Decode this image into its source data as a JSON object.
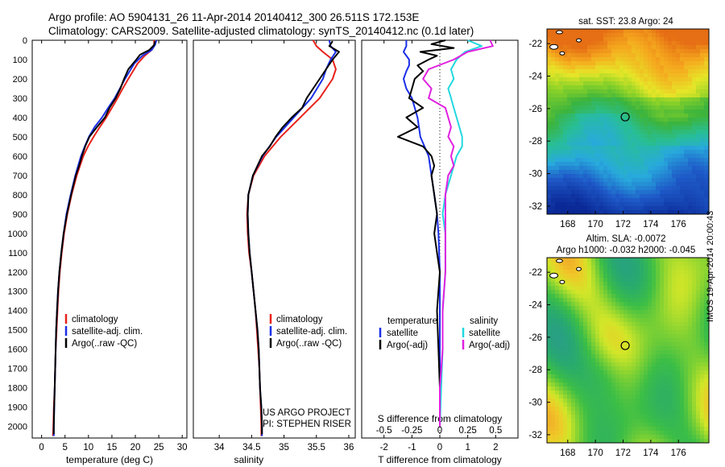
{
  "header": {
    "line1": "Argo profile: AO 5904131_26 11-Apr-2014 20140412_300 26.511S 172.153E",
    "line2": "Climatology: CARS2009. Satellite-adjusted climatology: synTS_20140412.nc (0.1d later)"
  },
  "footer": {
    "stamp": "IMOS 19-Apr-2014 20:00:43",
    "project": "US ARGO PROJECT",
    "pi": "PI: STEPHEN RISER"
  },
  "colors": {
    "climatology": "#e8221b",
    "satellite": "#1a2fe8",
    "argo": "#000000",
    "sat_salinity": "#22d8e0",
    "argo_salinity": "#e020e0"
  },
  "chart_data": [
    {
      "type": "line",
      "name": "temperature-profile",
      "xlabel": "temperature (deg C)",
      "ylabel": "",
      "xlim": [
        -2,
        31
      ],
      "ylim": [
        2060,
        0
      ],
      "xticks": [
        0,
        5,
        10,
        15,
        20,
        25,
        30
      ],
      "yticks": [
        0,
        100,
        200,
        300,
        400,
        500,
        600,
        700,
        800,
        900,
        1000,
        1100,
        1200,
        1300,
        1400,
        1500,
        1600,
        1700,
        1800,
        1900,
        2000
      ],
      "legend": [
        "climatology",
        "satellite-adj. clim.",
        "Argo(..raw -QC)"
      ],
      "series": [
        {
          "name": "climatology",
          "color": "climatology",
          "depth": [
            0,
            25,
            50,
            80,
            120,
            160,
            200,
            250,
            300,
            350,
            400,
            450,
            500,
            550,
            600,
            650,
            700,
            800,
            900,
            1000,
            1100,
            1200,
            1300,
            1400,
            1500,
            1600,
            1700,
            1800,
            1900,
            2000,
            2050
          ],
          "values": [
            24,
            24,
            23.5,
            22,
            20.5,
            19.5,
            18.5,
            17.3,
            16.2,
            15,
            13.8,
            12.4,
            11.1,
            9.9,
            8.9,
            8.2,
            7.5,
            6.4,
            5.5,
            4.8,
            4.3,
            3.9,
            3.6,
            3.4,
            3.2,
            3.0,
            2.9,
            2.8,
            2.6,
            2.5,
            2.4
          ]
        },
        {
          "name": "satellite-adj. clim.",
          "color": "satellite",
          "depth": [
            0,
            25,
            50,
            80,
            120,
            160,
            200,
            250,
            300,
            350,
            400,
            450,
            500,
            550,
            600,
            650,
            700,
            800,
            900,
            1000,
            1100,
            1200,
            1300,
            1400,
            1500,
            1600,
            1700,
            1800,
            1900,
            2000,
            2050
          ],
          "values": [
            24.5,
            24.2,
            23.5,
            21.5,
            19.8,
            18.8,
            17.8,
            16.7,
            15.6,
            14.2,
            12.9,
            11.3,
            10.1,
            9.2,
            8.4,
            7.8,
            7.2,
            6.2,
            5.3,
            4.7,
            4.2,
            3.8,
            3.5,
            3.3,
            3.1,
            3.0,
            2.9,
            2.8,
            2.7,
            2.6,
            2.6
          ]
        },
        {
          "name": "Argo(..raw -QC)",
          "color": "argo",
          "depth": [
            5,
            25,
            50,
            75,
            100,
            150,
            200,
            250,
            300,
            350,
            400,
            450,
            500,
            550,
            600,
            650,
            700,
            800,
            900,
            1000,
            1100,
            1200,
            1300,
            1400,
            1500,
            1600,
            1700,
            1800,
            1900,
            2000,
            2040
          ],
          "values": [
            24.2,
            24,
            23,
            21,
            20.2,
            18.5,
            17.6,
            16.8,
            15.8,
            14.5,
            13.5,
            11.8,
            10.2,
            9.3,
            8.6,
            8,
            7.3,
            6.3,
            5.4,
            4.7,
            4.2,
            3.8,
            3.5,
            3.3,
            3.1,
            3.0,
            2.9,
            2.8,
            2.7,
            2.6,
            2.6
          ]
        }
      ]
    },
    {
      "type": "line",
      "name": "salinity-profile",
      "xlabel": "salinity",
      "xlim": [
        33.6,
        36.1
      ],
      "ylim": [
        2060,
        0
      ],
      "xticks": [
        34,
        34.5,
        35,
        35.5,
        36
      ],
      "legend": [
        "climatology",
        "satellite-adj. clim.",
        "Argo(..raw -QC)"
      ],
      "series": [
        {
          "name": "climatology",
          "color": "climatology",
          "depth": [
            0,
            30,
            60,
            100,
            150,
            200,
            300,
            400,
            500,
            600,
            700,
            800,
            900,
            1000,
            1100,
            1200,
            1300,
            1400,
            1500,
            1600,
            1700,
            1800,
            1900,
            2000,
            2050
          ],
          "values": [
            35.45,
            35.5,
            35.6,
            35.75,
            35.8,
            35.75,
            35.55,
            35.25,
            34.95,
            34.7,
            34.53,
            34.45,
            34.43,
            34.44,
            34.46,
            34.5,
            34.53,
            34.56,
            34.58,
            34.6,
            34.62,
            34.63,
            34.64,
            34.65,
            34.65
          ]
        },
        {
          "name": "satellite-adj. clim.",
          "color": "satellite",
          "depth": [
            0,
            30,
            60,
            100,
            150,
            200,
            300,
            400,
            500,
            600,
            700,
            800,
            900,
            1000,
            1100,
            1200,
            1300,
            1400,
            1500,
            1600,
            1700,
            1800,
            1900,
            2000,
            2050
          ],
          "values": [
            35.7,
            35.72,
            35.8,
            35.72,
            35.65,
            35.6,
            35.42,
            35.15,
            34.88,
            34.67,
            34.52,
            34.45,
            34.44,
            34.45,
            34.47,
            34.5,
            34.53,
            34.56,
            34.59,
            34.61,
            34.62,
            34.63,
            34.65,
            34.66,
            34.66
          ]
        },
        {
          "name": "Argo(..raw -QC)",
          "color": "argo",
          "depth": [
            5,
            30,
            60,
            100,
            150,
            200,
            250,
            300,
            350,
            400,
            450,
            500,
            550,
            600,
            700,
            800,
            900,
            1000,
            1100,
            1200,
            1300,
            1400,
            1500,
            1600,
            1700,
            1800,
            1900,
            2000,
            2040
          ],
          "values": [
            35.75,
            35.7,
            35.85,
            35.75,
            35.65,
            35.55,
            35.45,
            35.35,
            35.28,
            35.12,
            34.98,
            34.87,
            34.78,
            34.66,
            34.52,
            34.45,
            34.44,
            34.45,
            34.47,
            34.5,
            34.53,
            34.56,
            34.59,
            34.61,
            34.62,
            34.63,
            34.65,
            34.66,
            34.66
          ]
        }
      ]
    },
    {
      "type": "line",
      "name": "difference-profile",
      "xlabel": "T difference from climatology",
      "xlabel_top": "S difference from climatology",
      "xlim": [
        -2.8,
        2.8
      ],
      "ylim": [
        2060,
        0
      ],
      "xticks": [
        -2,
        -1,
        0,
        1,
        2
      ],
      "xticklabels_top": [
        "-0.5",
        "-0.25",
        "0",
        "0.25",
        "0.5"
      ],
      "xticks_top": [
        -2,
        -1,
        0,
        1,
        2
      ],
      "legend_temperature": {
        "heading": "temperature",
        "items": [
          "satellite",
          "Argo(-adj)"
        ]
      },
      "legend_salinity": {
        "heading": "salinity",
        "items": [
          "satellite",
          "Argo(-adj)"
        ]
      },
      "series": [
        {
          "name": "T satellite",
          "color": "satellite",
          "depth": [
            0,
            30,
            60,
            100,
            130,
            160,
            200,
            250,
            300,
            400,
            500,
            600,
            700,
            800,
            900,
            1000,
            1200,
            1400,
            1600,
            1800,
            2000
          ],
          "values": [
            -1.2,
            -1.2,
            -1.3,
            -1.1,
            -1.1,
            -1.2,
            -1.3,
            -1.2,
            -1.0,
            -0.8,
            -0.7,
            -0.4,
            -0.3,
            -0.2,
            -0.1,
            -0.05,
            0,
            0,
            0,
            0,
            0
          ]
        },
        {
          "name": "T Argo(-adj)",
          "color": "argo",
          "depth": [
            0,
            20,
            40,
            60,
            80,
            100,
            130,
            160,
            200,
            250,
            300,
            350,
            400,
            450,
            500,
            550,
            600,
            650,
            700,
            800,
            900,
            1000,
            1100,
            1200,
            1400,
            1600,
            1800,
            2000
          ],
          "values": [
            0.2,
            -0.3,
            0.5,
            -0.7,
            -0.1,
            -0.4,
            -0.8,
            -0.6,
            -0.9,
            -1.0,
            -1.1,
            -0.6,
            -1.2,
            -0.8,
            -1.5,
            -0.6,
            -0.3,
            -0.2,
            -0.3,
            -0.2,
            -0.1,
            -0.2,
            -0.1,
            0,
            -0.1,
            -0.05,
            0,
            0
          ]
        },
        {
          "name": "S satellite",
          "color": "sat_salinity",
          "depth": [
            0,
            30,
            60,
            100,
            150,
            200,
            250,
            300,
            350,
            400,
            450,
            500,
            550,
            600,
            650,
            700,
            800,
            900,
            1000,
            1200,
            1400,
            1600,
            1800,
            2000
          ],
          "values": [
            1.0,
            1.5,
            0.9,
            0.6,
            0.4,
            0.5,
            0.3,
            0.4,
            0.5,
            0.6,
            0.7,
            0.8,
            0.8,
            0.6,
            0.5,
            0.4,
            0.2,
            0.1,
            0.2,
            0.2,
            0.1,
            0.1,
            0.05,
            0
          ]
        },
        {
          "name": "S Argo(-adj)",
          "color": "argo_salinity",
          "depth": [
            0,
            30,
            60,
            100,
            150,
            200,
            250,
            300,
            350,
            400,
            450,
            500,
            550,
            600,
            650,
            700,
            800,
            900,
            1000,
            1200,
            1400,
            1600,
            1800,
            2000
          ],
          "values": [
            1.8,
            1.9,
            1.0,
            0.5,
            -0.4,
            -0.6,
            -0.3,
            -0.4,
            0.2,
            0.3,
            0.4,
            0.3,
            0.5,
            0.4,
            0.5,
            0.3,
            0.2,
            0.2,
            0.2,
            0.2,
            0.1,
            0.1,
            0,
            0
          ]
        }
      ]
    },
    {
      "type": "heatmap",
      "name": "sst-map",
      "title": "sat. SST: 23.8  Argo: 24",
      "xlim": [
        166.5,
        178.2
      ],
      "ylim": [
        -32.5,
        -21.1
      ],
      "xticks": [
        168,
        170,
        172,
        174,
        176
      ],
      "yticks": [
        -22,
        -24,
        -26,
        -28,
        -30,
        -32
      ],
      "marker": {
        "lon": 172.153,
        "lat": -26.511
      }
    },
    {
      "type": "heatmap",
      "name": "sla-map",
      "title_line1": "Altim. SLA: -0.0072",
      "title_line2": "Argo h1000: -0.032 h2000: -0.045",
      "xlim": [
        166.5,
        178.2
      ],
      "ylim": [
        -32.5,
        -21.1
      ],
      "xticks": [
        168,
        170,
        172,
        174,
        176
      ],
      "yticks": [
        -22,
        -24,
        -26,
        -28,
        -30,
        -32
      ],
      "marker": {
        "lon": 172.153,
        "lat": -26.511
      }
    }
  ]
}
